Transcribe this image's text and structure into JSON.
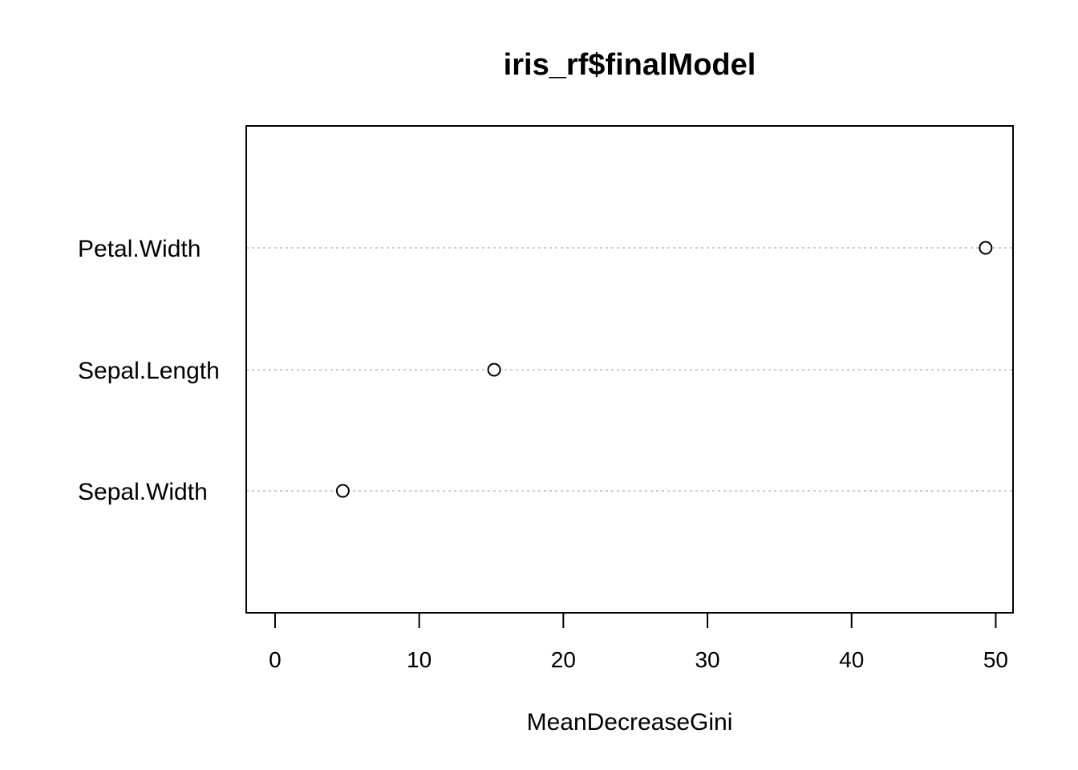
{
  "chart_data": {
    "type": "scatter",
    "title": "iris_rf$finalModel",
    "xlabel": "MeanDecreaseGini",
    "ylabel": "",
    "categories": [
      "Petal.Width",
      "Sepal.Length",
      "Sepal.Width"
    ],
    "values": [
      49.3,
      15.2,
      4.7
    ],
    "xlim": [
      -2,
      51.2
    ],
    "xticks": [
      0,
      10,
      20,
      30,
      40,
      50
    ],
    "grid": "dotted horizontal lines per variable",
    "legend": "none"
  }
}
